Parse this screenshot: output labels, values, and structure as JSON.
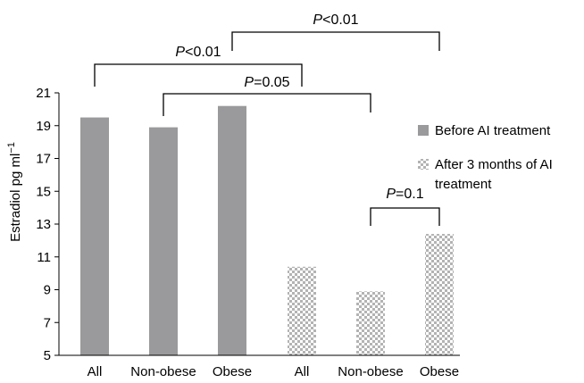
{
  "colors": {
    "before": "#9a9a9c",
    "after_light": "#ffffff",
    "after_dark": "#b3b3b3",
    "ink": "#000000"
  },
  "legend": {
    "before": "Before AI treatment",
    "after_line1": "After 3 months of AI",
    "after_line2": "treatment"
  },
  "significance": [
    {
      "from": 0,
      "to": 3,
      "p_symbol": "P",
      "p_text": "<0.01"
    },
    {
      "from": 2,
      "to": 5,
      "p_symbol": "P",
      "p_text": "<0.01"
    },
    {
      "from": 1,
      "to": 4,
      "p_symbol": "P",
      "p_text": "=0.05"
    },
    {
      "from": 4,
      "to": 5,
      "p_symbol": "P",
      "p_text": "=0.1"
    }
  ],
  "chart_data": {
    "type": "bar",
    "title": "",
    "xlabel": "",
    "ylabel": "Estradiol pg ml",
    "ylabel_superscript": "−1",
    "ylim": [
      5,
      21
    ],
    "yticks": [
      5,
      7,
      9,
      11,
      13,
      15,
      17,
      19,
      21
    ],
    "grid": false,
    "legend_position": "right",
    "categories": [
      "All",
      "Non-obese",
      "Obese",
      "All",
      "Non-obese",
      "Obese"
    ],
    "series": [
      {
        "name": "Before AI treatment",
        "pattern": "solid",
        "values": [
          19.5,
          18.9,
          20.2,
          null,
          null,
          null
        ]
      },
      {
        "name": "After 3 months of AI treatment",
        "pattern": "checker",
        "values": [
          null,
          null,
          null,
          10.4,
          8.9,
          12.4
        ]
      }
    ]
  }
}
